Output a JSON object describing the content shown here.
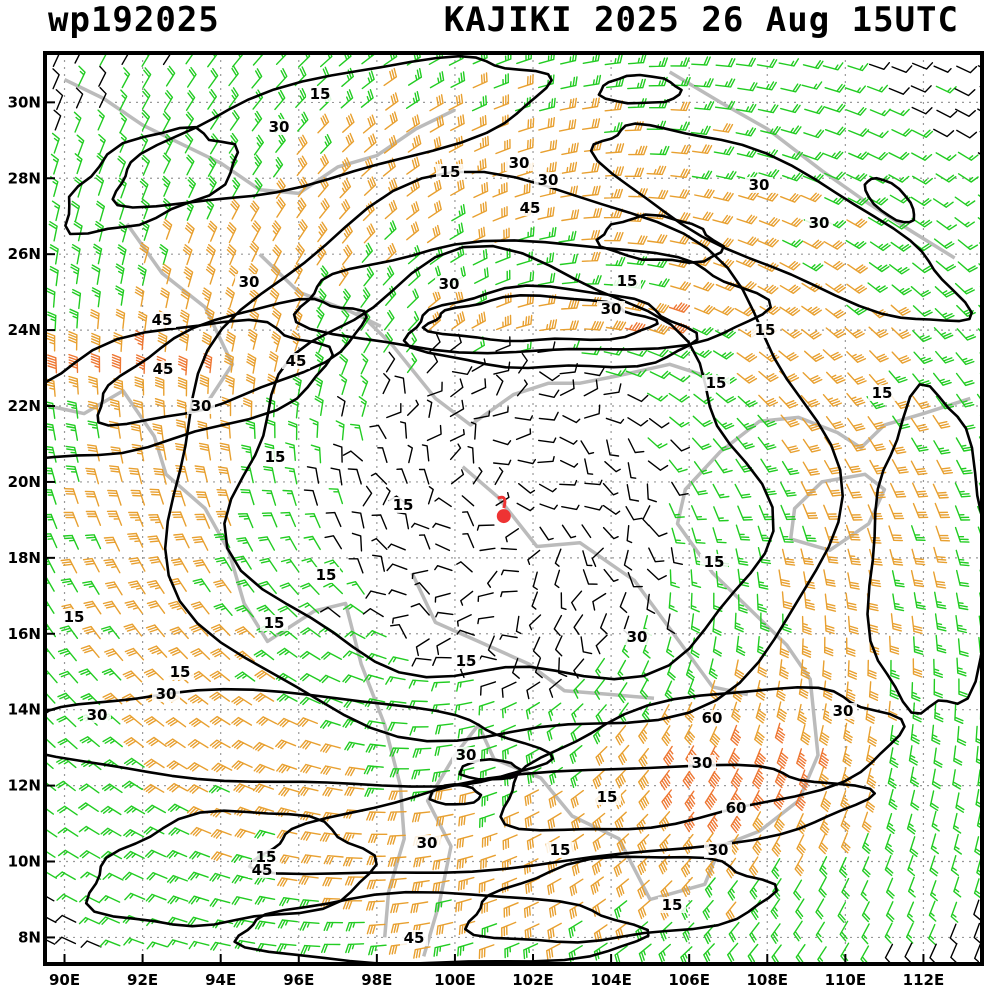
{
  "header": {
    "storm_id": "wp192025",
    "title": "KAJIKI 2025 26 Aug 15UTC"
  },
  "map": {
    "lon_range": [
      89.5,
      113.5
    ],
    "lat_range": [
      7.3,
      31.3
    ],
    "lon_ticks": [
      "90E",
      "92E",
      "94E",
      "96E",
      "98E",
      "100E",
      "102E",
      "104E",
      "106E",
      "108E",
      "110E",
      "112E"
    ],
    "lat_ticks": [
      "30N",
      "28N",
      "26N",
      "24N",
      "22N",
      "20N",
      "18N",
      "16N",
      "14N",
      "12N",
      "10N",
      "8N"
    ],
    "grid": true,
    "storm_center": {
      "lon": 101.2,
      "lat": 19.1
    },
    "colors": {
      "barb_light": "#000000",
      "barb_15": "#22cc22",
      "barb_30": "#e8a030",
      "barb_45": "#ee7733",
      "barb_60": "#ee3333",
      "coastline": "#bbbbbb",
      "contour": "#000000",
      "storm_marker": "#ee3333"
    },
    "contour_labels": [
      "15",
      "15",
      "15",
      "15",
      "15",
      "15",
      "15",
      "15",
      "15",
      "15",
      "15",
      "15",
      "15",
      "15",
      "15",
      "15",
      "15",
      "15",
      "30",
      "30",
      "30",
      "30",
      "30",
      "30",
      "30",
      "30",
      "30",
      "30",
      "30",
      "30",
      "30",
      "30",
      "30",
      "30",
      "30",
      "45",
      "45",
      "45",
      "45",
      "45",
      "45",
      "60",
      "60"
    ]
  }
}
